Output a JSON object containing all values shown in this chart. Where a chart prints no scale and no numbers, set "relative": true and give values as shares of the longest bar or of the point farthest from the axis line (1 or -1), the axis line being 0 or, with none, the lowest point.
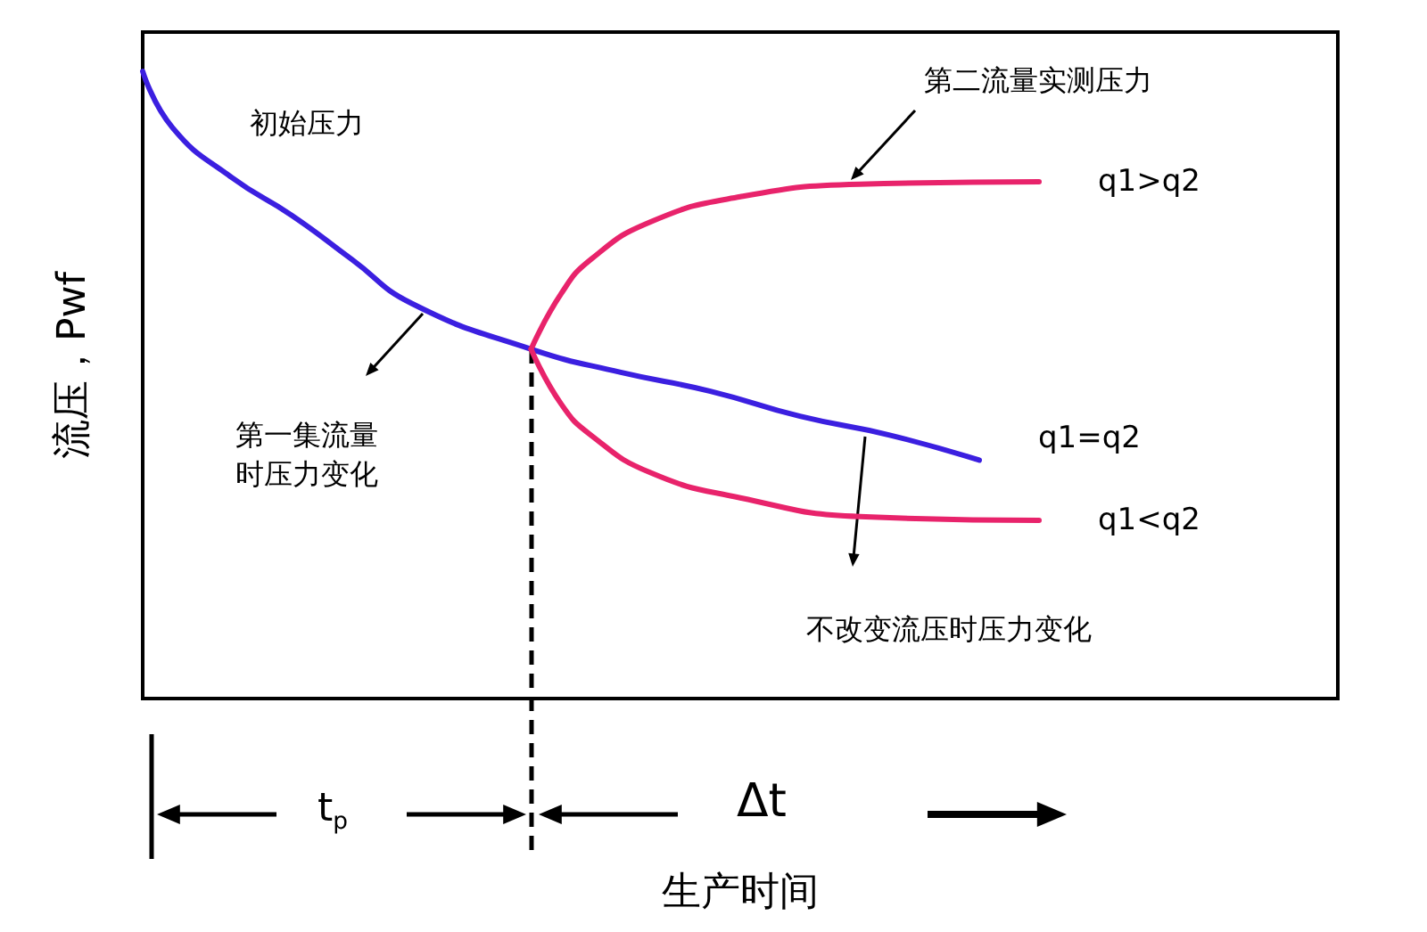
{
  "chart_data": {
    "type": "line",
    "relative": true,
    "legend": false,
    "grid": false,
    "marker": "none",
    "line_style": "solid",
    "xlabel": "生产时间",
    "ylabel": "流压，Pwf",
    "categories": [
      null,
      null,
      null,
      null,
      null,
      null,
      null,
      null,
      null,
      null,
      null,
      null,
      null,
      null,
      null,
      null,
      null,
      null,
      null,
      null,
      null,
      null,
      null,
      null,
      null,
      null,
      null,
      null,
      null,
      null,
      null,
      null,
      null,
      null,
      null,
      null,
      null,
      null,
      null,
      null,
      null
    ],
    "series": [
      {
        "name": "q1=q2",
        "color": "#3b1fe0",
        "values": [
          1.0,
          0.91,
          null,
          0.83,
          null,
          0.77,
          null,
          0.7,
          null,
          0.63,
          null,
          null,
          null,
          0.557,
          null,
          null,
          0.52,
          null,
          null,
          0.49,
          null,
          null,
          0.45,
          null,
          null,
          0.42,
          null,
          null,
          0.38,
          null,
          null,
          null,
          null,
          null,
          null,
          null,
          null,
          null,
          null,
          null,
          null
        ]
      },
      {
        "name": "q1>q2",
        "color": "#e8236b",
        "values": [
          null,
          null,
          null,
          null,
          null,
          null,
          null,
          null,
          null,
          null,
          null,
          null,
          null,
          0.557,
          0.645,
          0.7,
          null,
          0.76,
          null,
          null,
          0.8,
          null,
          null,
          null,
          0.82,
          null,
          null,
          null,
          null,
          null,
          0.824,
          null,
          null,
          null,
          null,
          null,
          null,
          null,
          null,
          null,
          null
        ]
      },
      {
        "name": "q1<q2",
        "color": "#e8236b",
        "values": [
          null,
          null,
          null,
          null,
          null,
          null,
          null,
          null,
          null,
          null,
          null,
          null,
          null,
          0.557,
          0.47,
          0.42,
          null,
          0.36,
          null,
          null,
          0.32,
          null,
          null,
          null,
          0.29,
          null,
          null,
          null,
          null,
          null,
          0.284,
          null,
          null,
          null,
          null,
          null,
          null,
          null,
          null,
          null,
          null
        ]
      }
    ],
    "annotations": [
      "初始压力",
      "第二流量实测压力",
      "第一集流量",
      "时压力变化",
      "不改变流压时压力变化",
      "t$_{p}$",
      "Δt"
    ]
  }
}
